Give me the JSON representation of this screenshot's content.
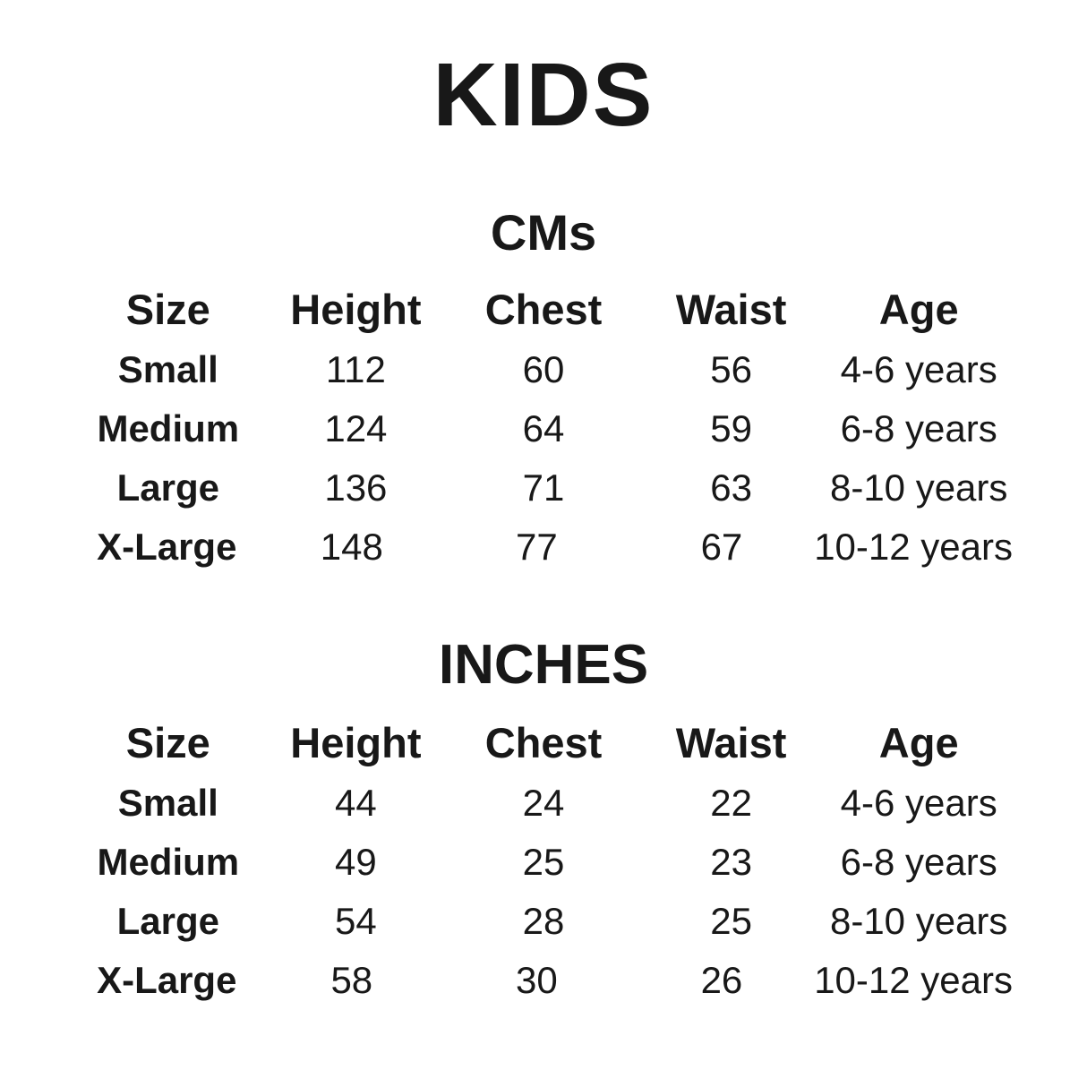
{
  "page_title": "KIDS",
  "colors": {
    "text": "#181818",
    "background": "#ffffff"
  },
  "chart_data": [
    {
      "type": "table",
      "title": "CMs",
      "columns": [
        "Size",
        "Height",
        "Chest",
        "Waist",
        "Age"
      ],
      "rows": [
        [
          "Small",
          "112",
          "60",
          "56",
          "4-6 years"
        ],
        [
          "Medium",
          "124",
          "64",
          "59",
          "6-8 years"
        ],
        [
          "Large",
          "136",
          "71",
          "63",
          "8-10 years"
        ],
        [
          "X-Large",
          "148",
          "77",
          "67",
          "10-12 years"
        ]
      ]
    },
    {
      "type": "table",
      "title": "INCHES",
      "columns": [
        "Size",
        "Height",
        "Chest",
        "Waist",
        "Age"
      ],
      "rows": [
        [
          "Small",
          "44",
          "24",
          "22",
          "4-6 years"
        ],
        [
          "Medium",
          "49",
          "25",
          "23",
          "6-8 years"
        ],
        [
          "Large",
          "54",
          "28",
          "25",
          "8-10 years"
        ],
        [
          "X-Large",
          "58",
          "30",
          "26",
          "10-12 years"
        ]
      ]
    }
  ]
}
